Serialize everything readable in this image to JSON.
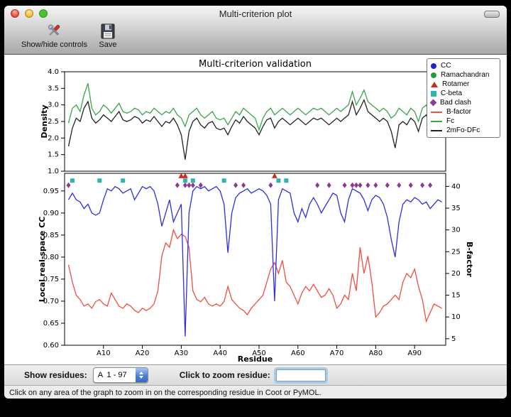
{
  "window": {
    "title": "Multi-criterion plot"
  },
  "toolbar": {
    "buttons": [
      {
        "label": "Show/hide controls",
        "icon": "tools-icon"
      },
      {
        "label": "Save",
        "icon": "floppy-disk-icon"
      }
    ]
  },
  "legend": {
    "items": [
      {
        "label": "CC",
        "glyph": "circle",
        "color": "#2222cc"
      },
      {
        "label": "Ramachandran",
        "glyph": "circle",
        "color": "#1f9e33"
      },
      {
        "label": "Rotamer",
        "glyph": "triangle",
        "color": "#cc2a1e"
      },
      {
        "label": "C-beta",
        "glyph": "square",
        "color": "#2ab8ae"
      },
      {
        "label": "Bad clash",
        "glyph": "diamond",
        "color": "#8c3a94"
      },
      {
        "label": "B-factor",
        "glyph": "line",
        "color": "#f04e42"
      },
      {
        "label": "Fc",
        "glyph": "line",
        "color": "#3aa648"
      },
      {
        "label": "2mFo-DFc",
        "glyph": "line",
        "color": "#222222"
      }
    ]
  },
  "chart_data": [
    {
      "type": "line",
      "title": "Multi-criterion validation",
      "xlabel": "",
      "ylabel": "Density",
      "ylim": [
        1.0,
        4.0
      ],
      "yticks": [
        1.0,
        1.5,
        2.0,
        2.5,
        3.0,
        3.5,
        4.0
      ],
      "xlim": [
        0,
        98
      ],
      "x_range": [
        1,
        97
      ],
      "series": [
        {
          "name": "Fc",
          "color": "#3aa648",
          "values": [
            2.45,
            2.9,
            3.0,
            2.8,
            3.3,
            3.65,
            2.9,
            2.7,
            2.8,
            3.0,
            2.9,
            2.75,
            2.9,
            3.05,
            2.8,
            2.75,
            2.8,
            2.9,
            2.85,
            2.7,
            2.8,
            2.75,
            2.9,
            2.8,
            2.7,
            2.8,
            2.75,
            2.9,
            2.7,
            2.6,
            2.35,
            2.7,
            2.8,
            2.9,
            2.7,
            2.6,
            2.7,
            2.8,
            2.6,
            2.55,
            2.6,
            2.4,
            2.6,
            2.8,
            2.7,
            2.9,
            2.8,
            2.7,
            2.6,
            2.25,
            2.6,
            2.8,
            2.9,
            2.7,
            2.8,
            2.9,
            2.8,
            2.7,
            2.8,
            2.9,
            2.8,
            2.7,
            2.8,
            2.9,
            2.85,
            2.9,
            2.8,
            2.7,
            2.8,
            2.9,
            2.8,
            2.9,
            3.0,
            3.4,
            3.0,
            3.2,
            3.45,
            3.1,
            3.0,
            2.9,
            2.8,
            2.9,
            2.8,
            2.6,
            2.7,
            2.9,
            2.8,
            2.7,
            2.9,
            2.8,
            2.5,
            2.9,
            3.0,
            2.6,
            3.3,
            3.35,
            3.3
          ]
        },
        {
          "name": "2mFo-DFc",
          "color": "#222222",
          "values": [
            1.75,
            2.3,
            2.6,
            2.5,
            2.9,
            3.1,
            2.6,
            2.45,
            2.55,
            2.7,
            2.6,
            2.5,
            2.65,
            2.8,
            2.55,
            2.5,
            2.55,
            2.65,
            2.6,
            2.45,
            2.55,
            2.5,
            2.65,
            2.5,
            2.35,
            2.5,
            2.45,
            2.6,
            2.4,
            2.1,
            1.35,
            2.2,
            2.5,
            2.6,
            2.4,
            2.3,
            2.45,
            2.5,
            2.3,
            2.25,
            2.3,
            2.1,
            2.35,
            2.55,
            2.45,
            2.65,
            2.5,
            2.4,
            2.3,
            2.1,
            2.35,
            2.55,
            2.6,
            2.3,
            2.5,
            2.6,
            2.5,
            2.4,
            2.5,
            2.6,
            2.5,
            2.4,
            2.5,
            2.6,
            2.55,
            2.6,
            2.5,
            2.4,
            2.5,
            2.6,
            2.5,
            2.6,
            2.7,
            3.1,
            2.7,
            2.9,
            3.15,
            2.8,
            2.7,
            2.6,
            2.5,
            2.6,
            2.5,
            2.2,
            1.7,
            2.4,
            2.5,
            2.4,
            2.6,
            2.5,
            2.2,
            2.6,
            2.7,
            2.3,
            3.0,
            3.1,
            3.05
          ]
        }
      ]
    },
    {
      "type": "line+scatter",
      "xlabel": "Residue",
      "ylabel": "Local real-space CC",
      "ylabel_right": "B-factor",
      "ylim": [
        0.6,
        0.99
      ],
      "ylim_right": [
        3.5,
        43
      ],
      "yticks": [
        0.6,
        0.65,
        0.7,
        0.75,
        0.8,
        0.85,
        0.9,
        0.95
      ],
      "yticks_right": [
        5,
        10,
        15,
        20,
        25,
        30,
        35,
        40
      ],
      "xlim": [
        0,
        98
      ],
      "x_range": [
        1,
        97
      ],
      "xticks": [
        10,
        20,
        30,
        40,
        50,
        60,
        70,
        80,
        90
      ],
      "xtick_labels": [
        "A10",
        "A20",
        "A30",
        "A40",
        "A50",
        "A60",
        "A70",
        "A80",
        "A90"
      ],
      "series": [
        {
          "name": "B-factor",
          "axis": "right",
          "color": "#f04e42",
          "values": [
            22,
            18,
            15,
            14,
            12.5,
            13,
            12,
            13.5,
            14,
            13,
            12.5,
            15.5,
            14,
            12.5,
            12,
            13,
            12.5,
            11.5,
            11,
            12,
            11.5,
            12,
            13,
            16,
            24,
            27,
            26,
            30,
            28,
            29,
            28.5,
            26,
            16,
            14,
            13.5,
            14.5,
            13,
            12.5,
            13,
            12.5,
            13.5,
            17,
            14,
            13,
            12,
            11.5,
            10.5,
            12,
            13,
            14,
            15,
            18,
            21,
            22.5,
            20,
            23,
            18,
            17,
            15,
            13,
            15.5,
            17,
            16,
            17.5,
            16,
            14.5,
            15,
            16.5,
            15,
            12,
            13,
            15,
            14,
            20,
            16,
            26,
            20,
            24,
            18,
            10,
            11,
            12.5,
            13,
            14,
            15,
            14,
            18,
            20,
            19,
            21,
            17,
            14,
            9,
            11,
            13,
            12.5,
            12
          ]
        },
        {
          "name": "CC",
          "axis": "left",
          "color": "#2e2ee0",
          "values": [
            0.93,
            0.945,
            0.93,
            0.925,
            0.91,
            0.92,
            0.9,
            0.895,
            0.9,
            0.93,
            0.955,
            0.95,
            0.96,
            0.955,
            0.945,
            0.95,
            0.955,
            0.93,
            0.945,
            0.96,
            0.955,
            0.96,
            0.95,
            0.92,
            0.87,
            0.9,
            0.93,
            0.88,
            0.9,
            0.92,
            0.62,
            0.9,
            0.95,
            0.96,
            0.955,
            0.96,
            0.95,
            0.955,
            0.96,
            0.95,
            0.92,
            0.81,
            0.9,
            0.935,
            0.945,
            0.95,
            0.955,
            0.945,
            0.95,
            0.955,
            0.95,
            0.94,
            0.92,
            0.7,
            0.93,
            0.955,
            0.95,
            0.945,
            0.9,
            0.88,
            0.91,
            0.89,
            0.92,
            0.935,
            0.92,
            0.9,
            0.915,
            0.93,
            0.945,
            0.94,
            0.9,
            0.88,
            0.93,
            0.955,
            0.95,
            0.945,
            0.93,
            0.905,
            0.93,
            0.94,
            0.935,
            0.92,
            0.89,
            0.84,
            0.8,
            0.88,
            0.92,
            0.93,
            0.925,
            0.935,
            0.93,
            0.92,
            0.925,
            0.91,
            0.92,
            0.93,
            0.925
          ]
        }
      ],
      "markers": [
        {
          "name": "Rotamer",
          "shape": "triangle",
          "color": "#cc2a1e",
          "y": 0.984,
          "x": [
            30,
            31,
            54
          ]
        },
        {
          "name": "C-beta",
          "shape": "square",
          "color": "#2ab8ae",
          "y": 0.9735,
          "x": [
            2,
            9,
            15,
            31,
            33,
            41,
            55,
            57
          ]
        },
        {
          "name": "Bad clash",
          "shape": "diamond",
          "color": "#8c3a94",
          "y": 0.963,
          "x": [
            1,
            29,
            31,
            32,
            33,
            35,
            44,
            46,
            53,
            65,
            68,
            72,
            74,
            75,
            76,
            78,
            80,
            83,
            86,
            89,
            92,
            94
          ]
        }
      ]
    }
  ],
  "controls": {
    "show_residues_label": "Show residues:",
    "residue_range_value": "A  1 - 97",
    "zoom_label": "Click to zoom residue:",
    "zoom_input_value": ""
  },
  "status_bar": {
    "text": "Click on any area of the graph to zoom in on the corresponding residue in Coot or PyMOL."
  }
}
